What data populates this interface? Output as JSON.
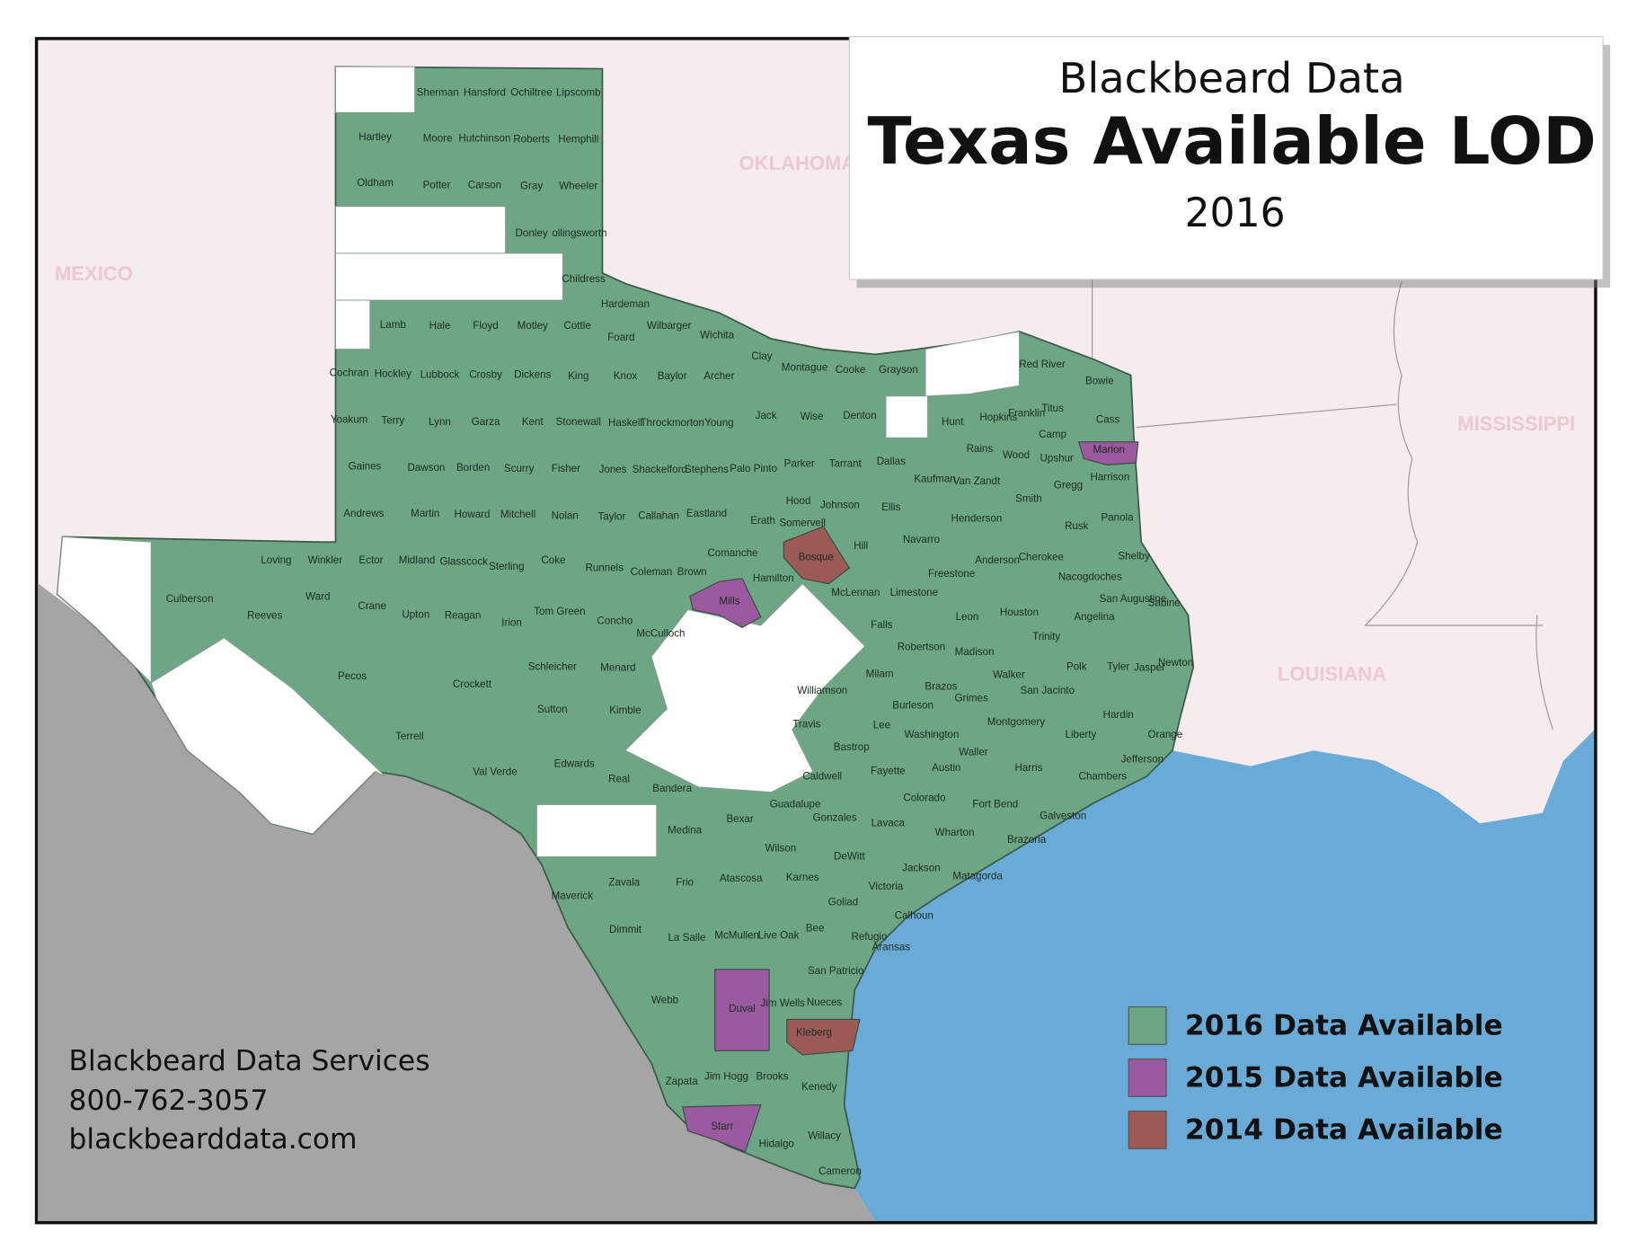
{
  "title": {
    "line1": "Blackbeard Data",
    "line2": "Texas Available LOD",
    "line3": "2016"
  },
  "background_labels": [
    "OKLAHOMA",
    "MEXICO",
    "MISSISSIPPI",
    "LOUISIANA"
  ],
  "legend": [
    {
      "label": "2016 Data Available",
      "color": "#6da685"
    },
    {
      "label": "2015 Data Available",
      "color": "#9b59a0"
    },
    {
      "label": "2014 Data Available",
      "color": "#9c5a57"
    }
  ],
  "footer": [
    "Blackbeard Data Services",
    "800-762-3057",
    "blackbearddata.com"
  ],
  "counties": [
    "Sherman",
    "Hansford",
    "Ochiltree",
    "Lipscomb",
    "Hartley",
    "Moore",
    "Hutchinson",
    "Roberts",
    "Hemphill",
    "Oldham",
    "Potter",
    "Carson",
    "Gray",
    "Wheeler",
    "Donley",
    "ollingsworth",
    "Childress",
    "Hardeman",
    "Foard",
    "Wilbarger",
    "Wichita",
    "Lamb",
    "Hale",
    "Floyd",
    "Motley",
    "Cottle",
    "Clay",
    "Montague",
    "Cooke",
    "Grayson",
    "Red River",
    "Bowie",
    "Cochran",
    "Hockley",
    "Lubbock",
    "Crosby",
    "Dickens",
    "King",
    "Knox",
    "Baylor",
    "Archer",
    "Yoakum",
    "Terry",
    "Lynn",
    "Garza",
    "Kent",
    "Stonewall",
    "Haskell",
    "Throckmorton",
    "Young",
    "Jack",
    "Wise",
    "Denton",
    "Hunt",
    "Hopkins",
    "Franklin",
    "Titus",
    "Cass",
    "Camp",
    "Rains",
    "Wood",
    "Upshur",
    "Marion",
    "Harrison",
    "Gregg",
    "Gaines",
    "Dawson",
    "Borden",
    "Scurry",
    "Fisher",
    "Jones",
    "Shackelford",
    "Stephens",
    "Palo Pinto",
    "Parker",
    "Tarrant",
    "Dallas",
    "Kaufman",
    "Van Zandt",
    "Smith",
    "Andrews",
    "Martin",
    "Howard",
    "Mitchell",
    "Nolan",
    "Taylor",
    "Callahan",
    "Eastland",
    "Erath",
    "Hood",
    "Johnson",
    "Somervell",
    "Ellis",
    "Henderson",
    "Rusk",
    "Panola",
    "Loving",
    "Winkler",
    "Ector",
    "Midland",
    "Glasscock",
    "Sterling",
    "Coke",
    "Runnels",
    "Coleman",
    "Brown",
    "Comanche",
    "Hamilton",
    "Bosque",
    "Hill",
    "Navarro",
    "Freestone",
    "Anderson",
    "Cherokee",
    "Nacogdoches",
    "Shelby",
    "San Augustine",
    "Sabine",
    "Culberson",
    "Reeves",
    "Ward",
    "Crane",
    "Upton",
    "Reagan",
    "Irion",
    "Tom Green",
    "Concho",
    "McCulloch",
    "Mills",
    "McLennan",
    "Limestone",
    "Leon",
    "Houston",
    "Angelina",
    "Falls",
    "Robertson",
    "Madison",
    "Trinity",
    "Polk",
    "Tyler",
    "Jasper",
    "Newton",
    "Pecos",
    "Crockett",
    "Schleicher",
    "Menard",
    "Milam",
    "Walker",
    "San Jacinto",
    "Williamson",
    "Brazos",
    "Grimes",
    "Sutton",
    "Kimble",
    "Burleson",
    "Montgomery",
    "Liberty",
    "Hardin",
    "Orange",
    "Travis",
    "Lee",
    "Washington",
    "Waller",
    "Terrell",
    "Val Verde",
    "Edwards",
    "Real",
    "Bastrop",
    "Austin",
    "Harris",
    "Jefferson",
    "Chambers",
    "Bandera",
    "Caldwell",
    "Fayette",
    "Guadalupe",
    "Bexar",
    "Gonzales",
    "Colorado",
    "Fort Bend",
    "Galveston",
    "Brazoria",
    "Wharton",
    "Lavaca",
    "Medina",
    "Wilson",
    "DeWitt",
    "Jackson",
    "Matagorda",
    "Maverick",
    "Zavala",
    "Frio",
    "Atascosa",
    "Karnes",
    "Victoria",
    "Goliad",
    "Calhoun",
    "Dimmit",
    "La Salle",
    "McMullen",
    "Live Oak",
    "Bee",
    "Refugio",
    "Aransas",
    "San Patricio",
    "Jim Wells",
    "Nueces",
    "Webb",
    "Duval",
    "Kleberg",
    "Zapata",
    "Jim Hogg",
    "Brooks",
    "Kenedy",
    "Starr",
    "Hidalgo",
    "Willacy",
    "Cameron"
  ]
}
